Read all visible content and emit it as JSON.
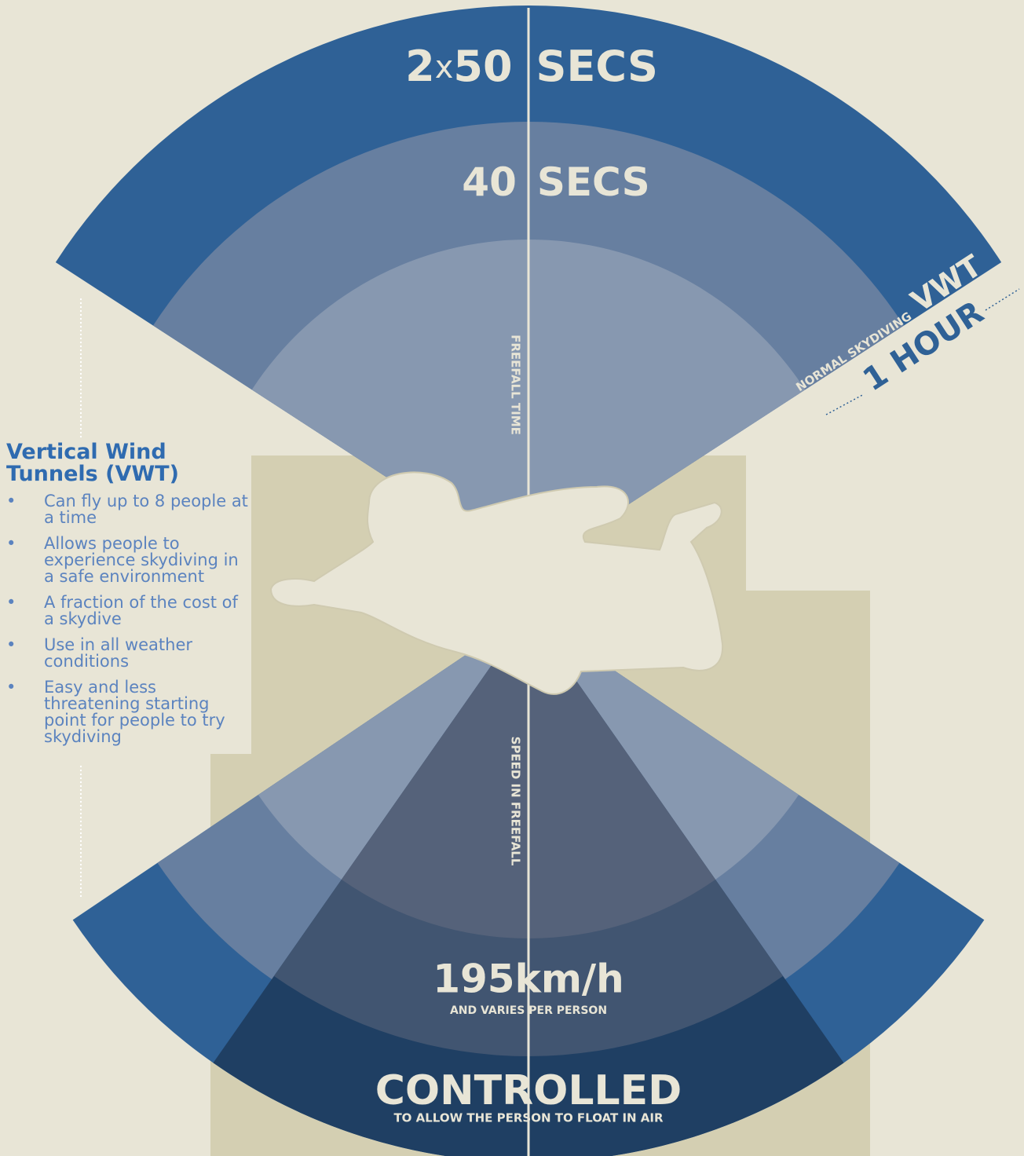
{
  "top": {
    "long": {
      "count": "2",
      "times": "x",
      "value": "50",
      "unit": "SECS"
    },
    "short": {
      "value": "40",
      "unit": "SECS"
    },
    "axis_label": "FREEFALL TIME",
    "normal": "NORMAL SKYDIVING",
    "vwt": "VWT",
    "duration": "1 HOUR"
  },
  "sidebar": {
    "title": "Vertical Wind Tunnels (VWT)",
    "bullets": [
      "Can fly up to 8 people at a time",
      "Allows people to experience skydiving in a safe environment",
      "A fraction of the cost of a skydive",
      "Use in all weather conditions",
      "Easy and less threatening starting point for people to try skydiving"
    ]
  },
  "bottom": {
    "axis_label": "SPEED IN FREEFALL",
    "speed": "195km/h",
    "speed_note": "AND VARIES PER PERSON",
    "vwt_speed": "CONTROLLED",
    "vwt_note": "TO ALLOW THE PERSON TO FLOAT IN AIR"
  }
}
